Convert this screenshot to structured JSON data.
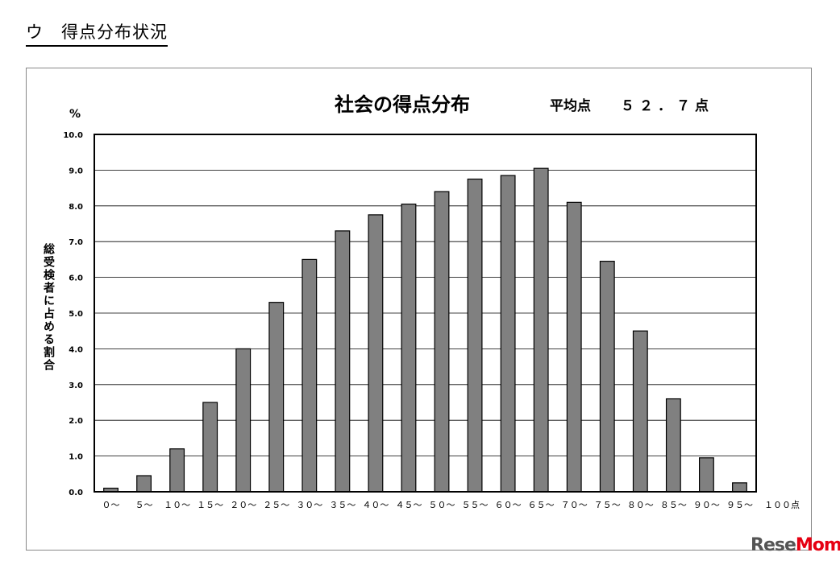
{
  "heading": "ウ　得点分布状況",
  "watermark": {
    "text_a": "Rese",
    "text_b": "Mom"
  },
  "chart_data": {
    "type": "bar",
    "title": "社会の得点分布",
    "mean_label": "平均点",
    "mean_value": "５２．７点",
    "unit": "%",
    "ylabel": "総受検者に占める割合",
    "xlabel": "",
    "categories": [
      "０～",
      "５～",
      "１０～",
      "１５～",
      "２０～",
      "２５～",
      "３０～",
      "３５～",
      "４０～",
      "４５～",
      "５０～",
      "５５～",
      "６０～",
      "６５～",
      "７０～",
      "７５～",
      "８０～",
      "８５～",
      "９０～",
      "９５～"
    ],
    "x_end_label": "１００点",
    "values": [
      0.1,
      0.45,
      1.2,
      2.5,
      4.0,
      5.3,
      6.5,
      7.3,
      7.75,
      8.05,
      8.4,
      8.75,
      8.85,
      9.05,
      8.1,
      6.45,
      4.5,
      2.6,
      0.95,
      0.25
    ],
    "ylim": [
      0,
      10
    ],
    "yticks": [
      "0.0",
      "1.0",
      "2.0",
      "3.0",
      "4.0",
      "5.0",
      "6.0",
      "7.0",
      "8.0",
      "9.0",
      "10.0"
    ],
    "grid": true,
    "bar_color": "#808080"
  }
}
